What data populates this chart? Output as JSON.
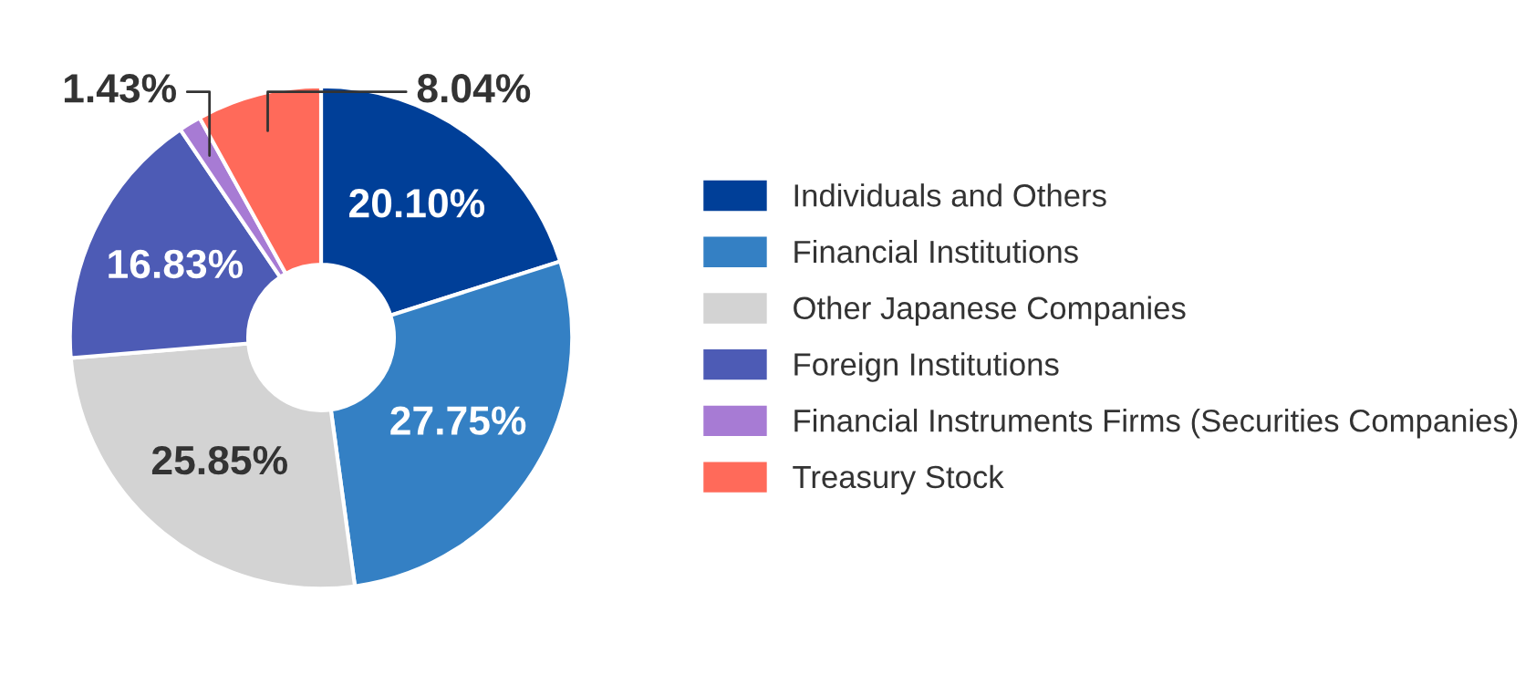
{
  "chart_data": {
    "type": "donut",
    "categories": [
      "Individuals and Others",
      "Financial Institutions",
      "Other Japanese Companies",
      "Foreign Institutions",
      "Financial Instruments Firms (Securities Companies)",
      "Treasury Stock"
    ],
    "values": [
      20.1,
      27.75,
      25.85,
      16.83,
      1.43,
      8.04
    ],
    "colors": [
      "#003f98",
      "#3480c4",
      "#d3d3d3",
      "#4d5bb5",
      "#a77bd4",
      "#ff6a5a"
    ],
    "value_labels": [
      "20.10%",
      "27.75%",
      "25.85%",
      "16.83%",
      "1.43%",
      "8.04%"
    ],
    "legend": "right"
  }
}
